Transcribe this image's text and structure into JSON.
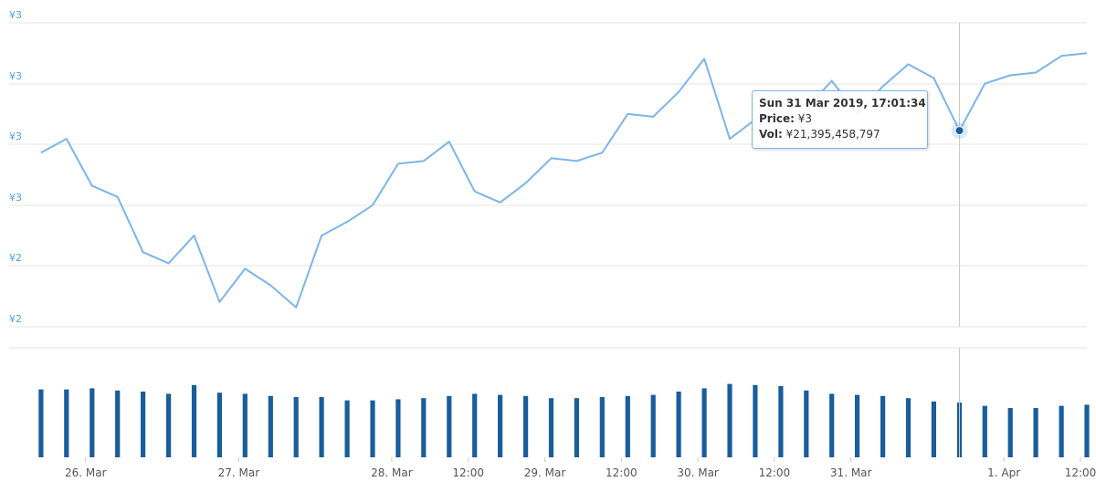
{
  "chart_data": [
    {
      "type": "line",
      "series": [
        {
          "x": [
            "2019-03-25 17:00",
            "2019-03-25 21:00",
            "2019-03-26 01:00",
            "2019-03-26 05:00",
            "2019-03-26 09:00",
            "2019-03-26 13:00",
            "2019-03-26 17:00",
            "2019-03-26 21:00",
            "2019-03-27 01:00",
            "2019-03-27 05:00",
            "2019-03-27 09:00",
            "2019-03-27 13:00",
            "2019-03-27 17:00",
            "2019-03-27 21:00",
            "2019-03-28 01:00",
            "2019-03-28 05:00",
            "2019-03-28 09:00",
            "2019-03-28 13:00",
            "2019-03-28 17:00",
            "2019-03-28 21:00",
            "2019-03-29 01:00",
            "2019-03-29 05:00",
            "2019-03-29 09:00",
            "2019-03-29 13:00",
            "2019-03-29 17:00",
            "2019-03-29 21:00",
            "2019-03-30 01:00",
            "2019-03-30 05:00",
            "2019-03-30 09:00",
            "2019-03-30 13:00",
            "2019-03-30 17:00",
            "2019-03-30 21:00",
            "2019-03-31 01:00",
            "2019-03-31 05:00",
            "2019-03-31 09:00",
            "2019-03-31 13:00",
            "2019-03-31 17:01",
            "2019-03-31 21:00",
            "2019-04-01 01:00",
            "2019-04-01 05:00",
            "2019-04-01 09:00",
            "2019-04-01 13:00"
          ],
          "values": [
            2.58,
            2.63,
            2.46,
            2.42,
            2.22,
            2.18,
            2.28,
            2.04,
            2.16,
            2.1,
            2.02,
            2.28,
            2.33,
            2.39,
            2.54,
            2.55,
            2.62,
            2.44,
            2.4,
            2.47,
            2.56,
            2.55,
            2.58,
            2.72,
            2.71,
            2.8,
            2.92,
            2.63,
            2.7,
            2.75,
            2.74,
            2.84,
            2.72,
            2.82,
            2.9,
            2.85,
            2.66,
            2.83,
            2.86,
            2.87,
            2.93,
            2.94
          ]
        }
      ],
      "ytick_labels": [
        "¥3",
        "¥3",
        "¥3",
        "¥3",
        "¥2",
        "¥2"
      ],
      "ylim": [
        1.95,
        3.05
      ],
      "tooltip": {
        "title": "Sun 31 Mar 2019, 17:01:34",
        "price_label": "Price:",
        "price_value": "¥3",
        "vol_label": "Vol:",
        "vol_value": "¥21,395,458,797"
      },
      "color": "#7cb5ec",
      "grid": true
    },
    {
      "type": "bar",
      "series": [
        {
          "x": [
            "2019-03-25 17:00",
            "2019-03-25 21:00",
            "2019-03-26 01:00",
            "2019-03-26 05:00",
            "2019-03-26 09:00",
            "2019-03-26 13:00",
            "2019-03-26 17:00",
            "2019-03-26 21:00",
            "2019-03-27 01:00",
            "2019-03-27 05:00",
            "2019-03-27 09:00",
            "2019-03-27 13:00",
            "2019-03-27 17:00",
            "2019-03-27 21:00",
            "2019-03-28 01:00",
            "2019-03-28 05:00",
            "2019-03-28 09:00",
            "2019-03-28 13:00",
            "2019-03-28 17:00",
            "2019-03-28 21:00",
            "2019-03-29 01:00",
            "2019-03-29 05:00",
            "2019-03-29 09:00",
            "2019-03-29 13:00",
            "2019-03-29 17:00",
            "2019-03-29 21:00",
            "2019-03-30 01:00",
            "2019-03-30 05:00",
            "2019-03-30 09:00",
            "2019-03-30 13:00",
            "2019-03-30 17:00",
            "2019-03-30 21:00",
            "2019-03-31 01:00",
            "2019-03-31 05:00",
            "2019-03-31 09:00",
            "2019-03-31 13:00",
            "2019-03-31 17:01",
            "2019-03-31 21:00",
            "2019-04-01 01:00",
            "2019-04-01 05:00",
            "2019-04-01 09:00",
            "2019-04-01 13:00"
          ],
          "values": [
            0.62,
            0.62,
            0.63,
            0.61,
            0.6,
            0.58,
            0.66,
            0.59,
            0.58,
            0.56,
            0.55,
            0.55,
            0.52,
            0.52,
            0.53,
            0.54,
            0.56,
            0.58,
            0.57,
            0.56,
            0.54,
            0.54,
            0.55,
            0.56,
            0.57,
            0.6,
            0.63,
            0.67,
            0.66,
            0.65,
            0.61,
            0.58,
            0.57,
            0.56,
            0.54,
            0.51,
            0.5,
            0.47,
            0.45,
            0.45,
            0.47,
            0.48
          ]
        }
      ],
      "color": "#1a5d9c"
    }
  ],
  "xaxis": {
    "tick_labels": [
      "26. Mar",
      "27. Mar",
      "28. Mar",
      "12:00",
      "29. Mar",
      "12:00",
      "30. Mar",
      "12:00",
      "31. Mar",
      "1. Apr",
      "12:00"
    ]
  }
}
